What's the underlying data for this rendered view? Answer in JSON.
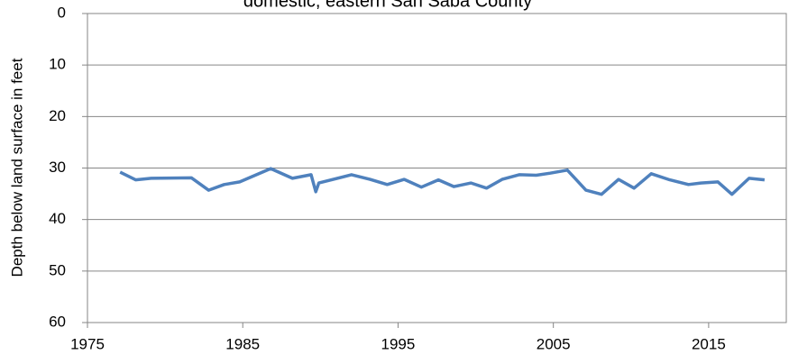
{
  "chart_data": {
    "type": "line",
    "title": "domestic, eastern San Saba County",
    "y_label": "Depth below land surface in feet",
    "x": [
      1977.1,
      1978.1,
      1979.1,
      1981.7,
      1982.8,
      1983.8,
      1984.8,
      1986.8,
      1988.2,
      1989.4,
      1989.7,
      1989.9,
      1992.0,
      1993.2,
      1994.3,
      1995.4,
      1996.5,
      1997.6,
      1998.6,
      1999.7,
      2000.7,
      2001.7,
      2002.8,
      2003.9,
      2004.8,
      2005.9,
      2007.1,
      2008.1,
      2009.2,
      2010.2,
      2011.3,
      2012.5,
      2013.7,
      2014.5,
      2015.6,
      2016.5,
      2017.6,
      2018.6
    ],
    "values": [
      30.8,
      32.3,
      32.0,
      31.9,
      34.3,
      33.2,
      32.7,
      30.1,
      32.0,
      31.3,
      34.6,
      32.9,
      31.3,
      32.2,
      33.2,
      32.2,
      33.7,
      32.3,
      33.6,
      32.9,
      33.9,
      32.2,
      31.3,
      31.4,
      31.0,
      30.4,
      34.3,
      35.1,
      32.2,
      33.9,
      31.1,
      32.3,
      33.2,
      32.9,
      32.7,
      35.1,
      32.0,
      32.3
    ],
    "color": "#4f81bd",
    "xlim": [
      1975,
      2020
    ],
    "xticks": [
      1975,
      1985,
      1995,
      2005,
      2015
    ],
    "ylim": [
      0,
      60
    ],
    "yticks": [
      0,
      10,
      20,
      30,
      40,
      50,
      60
    ],
    "y_inverted": true,
    "grid": true
  }
}
